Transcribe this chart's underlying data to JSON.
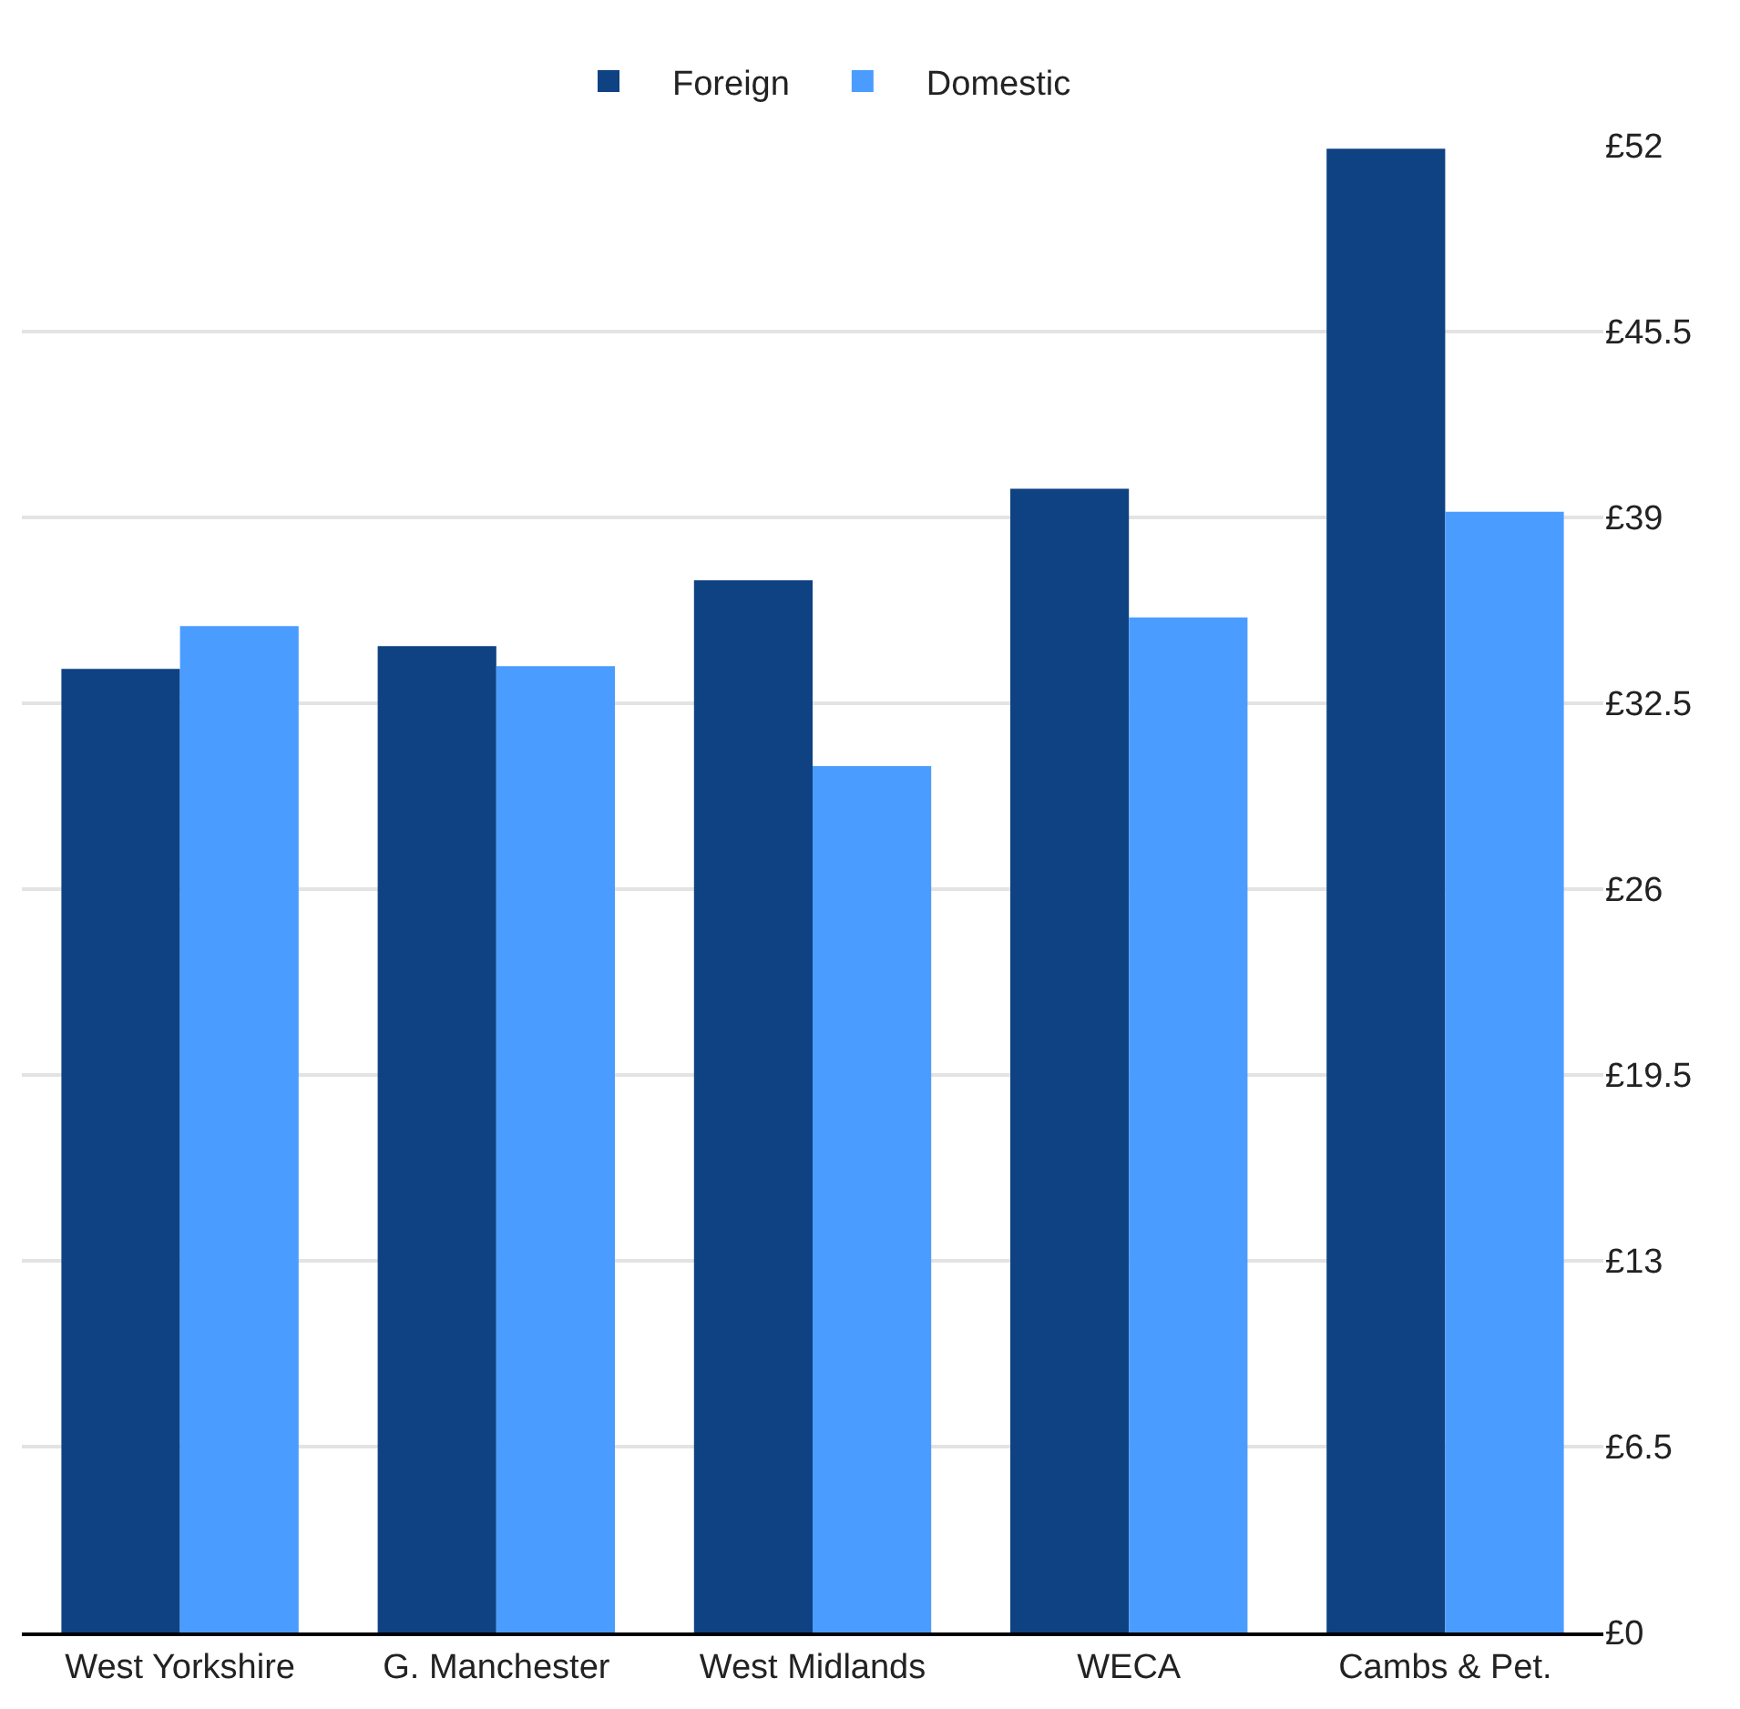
{
  "chart_data": {
    "type": "bar",
    "categories": [
      "West Yorkshire",
      "G. Manchester",
      "West Midlands",
      "WECA",
      "Cambs & Pet."
    ],
    "series": [
      {
        "name": "Foreign",
        "color": "#0f4282",
        "values": [
          33.7,
          34.5,
          36.8,
          40.0,
          51.9
        ]
      },
      {
        "name": "Domestic",
        "color": "#4a9dff",
        "values": [
          35.2,
          33.8,
          30.3,
          35.5,
          39.2
        ]
      }
    ],
    "ylim": [
      0,
      52
    ],
    "yticks": [
      {
        "value": 0,
        "label": "£0"
      },
      {
        "value": 6.5,
        "label": "£6.5"
      },
      {
        "value": 13,
        "label": "£13"
      },
      {
        "value": 19.5,
        "label": "£19.5"
      },
      {
        "value": 26,
        "label": "£26"
      },
      {
        "value": 32.5,
        "label": "£32.5"
      },
      {
        "value": 39,
        "label": "£39"
      },
      {
        "value": 45.5,
        "label": "£45.5"
      },
      {
        "value": 52,
        "label": "£52"
      }
    ],
    "grid": "y",
    "legend": "top"
  }
}
